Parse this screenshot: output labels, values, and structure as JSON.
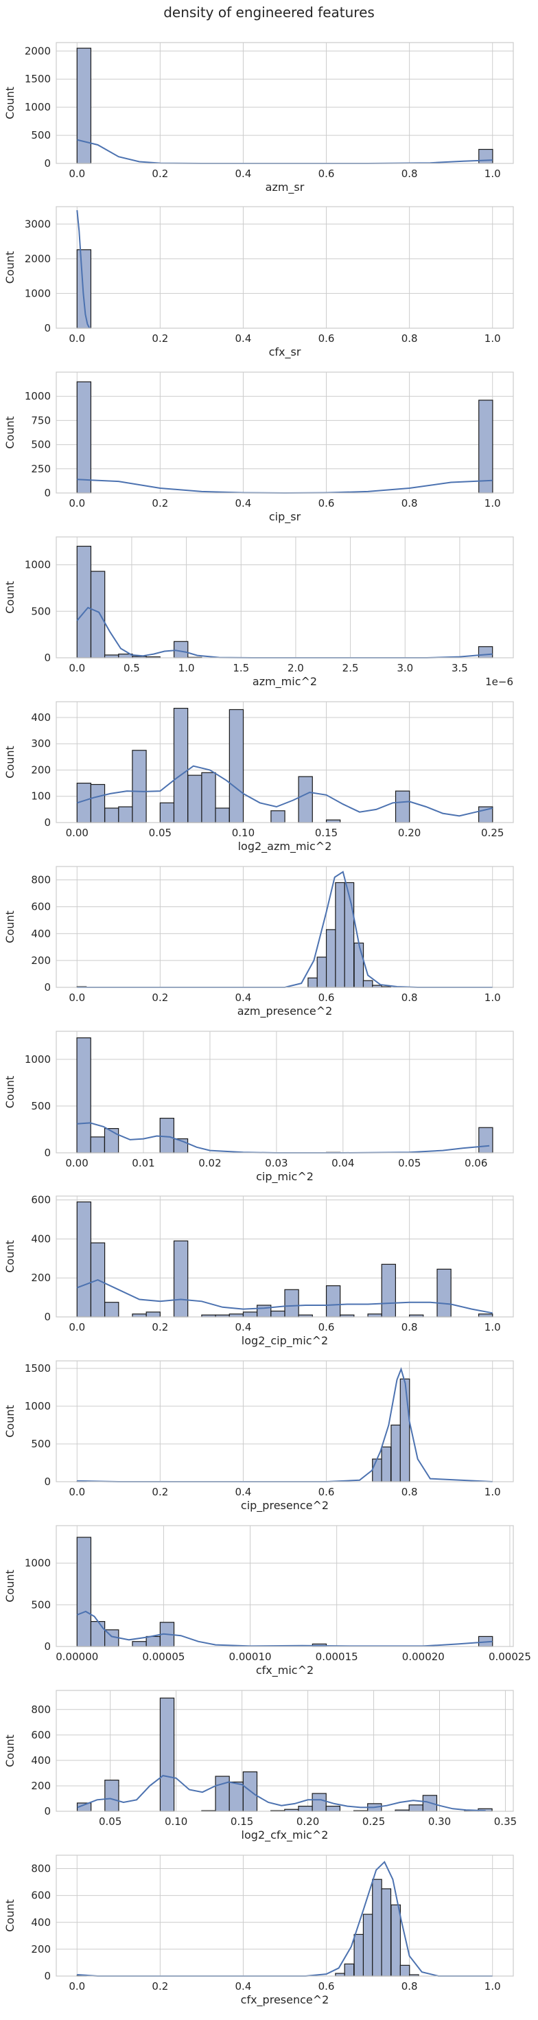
{
  "figure": {
    "title": "density of engineered features"
  },
  "colors": {
    "bar_fill": "#a3b2d2",
    "bar_edge": "#1a1a1a",
    "kde_line": "#4c72b0",
    "grid": "#cccccc",
    "frame": "#cccccc"
  },
  "chart_data": [
    {
      "type": "bar",
      "xlabel": "azm_sr",
      "ylabel": "Count",
      "xlim": [
        -0.05,
        1.05
      ],
      "ylim": [
        0,
        2150
      ],
      "xticks": [
        0.0,
        0.2,
        0.4,
        0.6,
        0.8,
        1.0
      ],
      "xtick_labels": [
        "0.0",
        "0.2",
        "0.4",
        "0.6",
        "0.8",
        "1.0"
      ],
      "yticks": [
        0,
        500,
        1000,
        1500,
        2000
      ],
      "ytick_labels": [
        "0",
        "500",
        "1000",
        "1500",
        "2000"
      ],
      "offset_label": "",
      "bin_width": 0.0333,
      "bins_x": [
        0.0,
        0.967
      ],
      "bins_count": [
        2050,
        250
      ],
      "kde_x": [
        0.0,
        0.05,
        0.1,
        0.15,
        0.2,
        0.3,
        0.5,
        0.7,
        0.85,
        0.93,
        1.0
      ],
      "kde_y": [
        420,
        330,
        120,
        30,
        5,
        0,
        0,
        0,
        10,
        40,
        60
      ]
    },
    {
      "type": "bar",
      "xlabel": "cfx_sr",
      "ylabel": "Count",
      "xlim": [
        -0.05,
        1.05
      ],
      "ylim": [
        0,
        3500
      ],
      "xticks": [
        0.0,
        0.2,
        0.4,
        0.6,
        0.8,
        1.0
      ],
      "xtick_labels": [
        "0.0",
        "0.2",
        "0.4",
        "0.6",
        "0.8",
        "1.0"
      ],
      "yticks": [
        0,
        1000,
        2000,
        3000
      ],
      "ytick_labels": [
        "0",
        "1000",
        "2000",
        "3000"
      ],
      "offset_label": "",
      "bin_width": 0.0333,
      "bins_x": [
        0.0
      ],
      "bins_count": [
        2260
      ],
      "kde_x": [
        0.0,
        0.005,
        0.01,
        0.015,
        0.02,
        0.025,
        0.03
      ],
      "kde_y": [
        3400,
        2800,
        1900,
        1000,
        400,
        120,
        0
      ]
    },
    {
      "type": "bar",
      "xlabel": "cip_sr",
      "ylabel": "Count",
      "xlim": [
        -0.05,
        1.05
      ],
      "ylim": [
        0,
        1250
      ],
      "xticks": [
        0.0,
        0.2,
        0.4,
        0.6,
        0.8,
        1.0
      ],
      "xtick_labels": [
        "0.0",
        "0.2",
        "0.4",
        "0.6",
        "0.8",
        "1.0"
      ],
      "yticks": [
        0,
        250,
        500,
        750,
        1000
      ],
      "ytick_labels": [
        "0",
        "250",
        "500",
        "750",
        "1000"
      ],
      "offset_label": "",
      "bin_width": 0.0333,
      "bins_x": [
        0.0,
        0.967
      ],
      "bins_count": [
        1150,
        960
      ],
      "kde_x": [
        0.0,
        0.1,
        0.2,
        0.3,
        0.4,
        0.5,
        0.6,
        0.7,
        0.8,
        0.9,
        1.0
      ],
      "kde_y": [
        140,
        120,
        50,
        15,
        3,
        0,
        3,
        15,
        50,
        110,
        130
      ]
    },
    {
      "type": "bar",
      "xlabel": "azm_mic^2",
      "ylabel": "Count",
      "xlim": [
        -0.19,
        3.99
      ],
      "ylim": [
        0,
        1300
      ],
      "xticks": [
        0.0,
        0.5,
        1.0,
        1.5,
        2.0,
        2.5,
        3.0,
        3.5
      ],
      "xtick_labels": [
        "0.0",
        "0.5",
        "1.0",
        "1.5",
        "2.0",
        "2.5",
        "3.0",
        "3.5"
      ],
      "yticks": [
        0,
        500,
        1000
      ],
      "ytick_labels": [
        "0",
        "500",
        "1000"
      ],
      "offset_label": "1e−6",
      "bin_width": 0.1267,
      "bins_x": [
        0.0,
        0.127,
        0.253,
        0.38,
        0.507,
        0.633,
        0.76,
        0.887,
        1.013,
        3.673
      ],
      "bins_count": [
        1200,
        930,
        30,
        40,
        15,
        10,
        0,
        175,
        5,
        120
      ],
      "kde_x": [
        0.0,
        0.1,
        0.2,
        0.3,
        0.4,
        0.5,
        0.6,
        0.7,
        0.8,
        0.9,
        1.0,
        1.1,
        1.3,
        1.6,
        3.2,
        3.5,
        3.7,
        3.8
      ],
      "kde_y": [
        400,
        540,
        490,
        280,
        100,
        30,
        20,
        40,
        70,
        80,
        60,
        25,
        3,
        0,
        0,
        10,
        30,
        40
      ]
    },
    {
      "type": "bar",
      "xlabel": "log2_azm_mic^2",
      "ylabel": "Count",
      "xlim": [
        -0.0125,
        0.2625
      ],
      "ylim": [
        0,
        460
      ],
      "xticks": [
        0.0,
        0.05,
        0.1,
        0.15,
        0.2,
        0.25
      ],
      "xtick_labels": [
        "0.00",
        "0.05",
        "0.10",
        "0.15",
        "0.20",
        "0.25"
      ],
      "yticks": [
        0,
        100,
        200,
        300,
        400
      ],
      "ytick_labels": [
        "0",
        "100",
        "200",
        "300",
        "400"
      ],
      "offset_label": "",
      "bin_width": 0.00833,
      "bins_x": [
        0.0,
        0.0083,
        0.0167,
        0.025,
        0.0333,
        0.0417,
        0.05,
        0.0583,
        0.0667,
        0.075,
        0.0833,
        0.0917,
        0.1,
        0.1083,
        0.1167,
        0.125,
        0.1333,
        0.1417,
        0.15,
        0.1583,
        0.1667,
        0.175,
        0.1833,
        0.1917,
        0.2,
        0.2083,
        0.2167,
        0.225,
        0.2333,
        0.2417
      ],
      "bins_count": [
        150,
        145,
        55,
        60,
        275,
        0,
        75,
        435,
        180,
        190,
        55,
        430,
        0,
        0,
        45,
        0,
        175,
        0,
        10,
        0,
        0,
        0,
        0,
        120,
        0,
        0,
        0,
        0,
        0,
        60
      ],
      "kde_x": [
        0.0,
        0.01,
        0.02,
        0.03,
        0.04,
        0.05,
        0.06,
        0.07,
        0.08,
        0.09,
        0.1,
        0.11,
        0.12,
        0.13,
        0.14,
        0.15,
        0.16,
        0.17,
        0.18,
        0.19,
        0.2,
        0.21,
        0.22,
        0.23,
        0.24,
        0.25
      ],
      "kde_y": [
        75,
        95,
        110,
        120,
        118,
        120,
        170,
        215,
        200,
        160,
        110,
        75,
        60,
        85,
        115,
        105,
        70,
        40,
        50,
        75,
        80,
        60,
        35,
        25,
        40,
        55
      ]
    },
    {
      "type": "bar",
      "xlabel": "azm_presence^2",
      "ylabel": "Count",
      "xlim": [
        -0.05,
        1.05
      ],
      "ylim": [
        0,
        900
      ],
      "xticks": [
        0.0,
        0.2,
        0.4,
        0.6,
        0.8,
        1.0
      ],
      "xtick_labels": [
        "0.0",
        "0.2",
        "0.4",
        "0.6",
        "0.8",
        "1.0"
      ],
      "yticks": [
        0,
        200,
        400,
        600,
        800
      ],
      "ytick_labels": [
        "0",
        "200",
        "400",
        "600",
        "800"
      ],
      "offset_label": "",
      "bin_width": 0.0222,
      "bins_x": [
        0.0,
        0.556,
        0.578,
        0.6,
        0.622,
        0.644,
        0.667,
        0.689,
        0.711,
        0.733
      ],
      "bins_count": [
        5,
        70,
        225,
        430,
        780,
        780,
        330,
        50,
        15,
        5
      ],
      "kde_x": [
        0.0,
        0.05,
        0.5,
        0.54,
        0.57,
        0.6,
        0.62,
        0.64,
        0.66,
        0.68,
        0.7,
        0.73,
        0.77,
        0.82,
        1.0
      ],
      "kde_y": [
        0,
        0,
        0,
        30,
        200,
        560,
        820,
        860,
        620,
        300,
        90,
        20,
        5,
        0,
        0
      ]
    },
    {
      "type": "bar",
      "xlabel": "cip_mic^2",
      "ylabel": "Count",
      "xlim": [
        -0.0031,
        0.0656
      ],
      "ylim": [
        0,
        1300
      ],
      "xticks": [
        0.0,
        0.01,
        0.02,
        0.03,
        0.04,
        0.05,
        0.06
      ],
      "xtick_labels": [
        "0.00",
        "0.01",
        "0.02",
        "0.03",
        "0.04",
        "0.05",
        "0.06"
      ],
      "yticks": [
        0,
        500,
        1000
      ],
      "ytick_labels": [
        "0",
        "500",
        "1000"
      ],
      "offset_label": "",
      "bin_width": 0.00208,
      "bins_x": [
        0.0,
        0.00208,
        0.00417,
        0.00625,
        0.00833,
        0.01042,
        0.0125,
        0.01458,
        0.0375,
        0.06042
      ],
      "bins_count": [
        1230,
        170,
        260,
        0,
        0,
        0,
        370,
        150,
        5,
        270
      ],
      "kde_x": [
        0.0,
        0.002,
        0.004,
        0.006,
        0.008,
        0.01,
        0.012,
        0.014,
        0.016,
        0.018,
        0.02,
        0.025,
        0.03,
        0.04,
        0.05,
        0.055,
        0.058,
        0.062
      ],
      "kde_y": [
        310,
        320,
        280,
        200,
        140,
        150,
        180,
        170,
        120,
        60,
        25,
        5,
        0,
        0,
        5,
        25,
        50,
        75
      ]
    },
    {
      "type": "bar",
      "xlabel": "log2_cip_mic^2",
      "ylabel": "Count",
      "xlim": [
        -0.05,
        1.05
      ],
      "ylim": [
        0,
        620
      ],
      "xticks": [
        0.0,
        0.2,
        0.4,
        0.6,
        0.8,
        1.0
      ],
      "xtick_labels": [
        "0.0",
        "0.2",
        "0.4",
        "0.6",
        "0.8",
        "1.0"
      ],
      "yticks": [
        0,
        200,
        400,
        600
      ],
      "ytick_labels": [
        "0",
        "200",
        "400",
        "600"
      ],
      "offset_label": "",
      "bin_width": 0.0333,
      "bins_x": [
        0.0,
        0.0333,
        0.0667,
        0.1,
        0.1333,
        0.1667,
        0.2,
        0.2333,
        0.3,
        0.3333,
        0.3667,
        0.4,
        0.4333,
        0.4667,
        0.5,
        0.5333,
        0.5667,
        0.6,
        0.6333,
        0.6667,
        0.7,
        0.7333,
        0.7667,
        0.8,
        0.8333,
        0.8667,
        0.9,
        0.9333,
        0.9667
      ],
      "bins_count": [
        590,
        380,
        75,
        0,
        15,
        25,
        0,
        390,
        10,
        10,
        15,
        25,
        60,
        30,
        140,
        10,
        0,
        160,
        10,
        0,
        15,
        270,
        0,
        10,
        0,
        245,
        0,
        0,
        15
      ],
      "kde_x": [
        0.0,
        0.05,
        0.1,
        0.15,
        0.2,
        0.25,
        0.3,
        0.35,
        0.4,
        0.45,
        0.5,
        0.55,
        0.6,
        0.65,
        0.7,
        0.75,
        0.8,
        0.85,
        0.9,
        0.95,
        1.0
      ],
      "kde_y": [
        150,
        190,
        140,
        90,
        80,
        90,
        80,
        50,
        40,
        45,
        55,
        60,
        60,
        65,
        65,
        70,
        75,
        75,
        65,
        40,
        20
      ]
    },
    {
      "type": "bar",
      "xlabel": "cip_presence^2",
      "ylabel": "Count",
      "xlim": [
        -0.05,
        1.05
      ],
      "ylim": [
        0,
        1600
      ],
      "xticks": [
        0.0,
        0.2,
        0.4,
        0.6,
        0.8,
        1.0
      ],
      "xtick_labels": [
        "0.0",
        "0.2",
        "0.4",
        "0.6",
        "0.8",
        "1.0"
      ],
      "yticks": [
        0,
        500,
        1000,
        1500
      ],
      "ytick_labels": [
        "0",
        "500",
        "1000",
        "1500"
      ],
      "offset_label": "",
      "bin_width": 0.0222,
      "bins_x": [
        0.0,
        0.711,
        0.733,
        0.756,
        0.778
      ],
      "bins_count": [
        5,
        300,
        460,
        750,
        1360
      ],
      "kde_x": [
        0.0,
        0.1,
        0.6,
        0.68,
        0.71,
        0.73,
        0.75,
        0.77,
        0.78,
        0.79,
        0.8,
        0.82,
        0.85,
        1.0
      ],
      "kde_y": [
        10,
        0,
        0,
        20,
        150,
        400,
        750,
        1350,
        1490,
        1300,
        800,
        300,
        40,
        0
      ]
    },
    {
      "type": "bar",
      "xlabel": "cfx_mic^2",
      "ylabel": "Count",
      "xlim": [
        -1.2e-05,
        0.000252
      ],
      "ylim": [
        0,
        1450
      ],
      "xticks": [
        0.0,
        5e-05,
        0.0001,
        0.00015,
        0.0002,
        0.00025
      ],
      "xtick_labels": [
        "0.00000",
        "0.00005",
        "0.00010",
        "0.00015",
        "0.00020",
        "0.00025"
      ],
      "yticks": [
        0,
        500,
        1000
      ],
      "ytick_labels": [
        "0",
        "500",
        "1000"
      ],
      "offset_label": "",
      "bin_width": 8e-06,
      "bins_x": [
        0.0,
        8e-06,
        1.6e-05,
        3.2e-05,
        4e-05,
        4.8e-05,
        0.000136,
        0.000232
      ],
      "bins_count": [
        1310,
        300,
        200,
        60,
        120,
        290,
        30,
        120
      ],
      "kde_x": [
        0.0,
        5e-06,
        1e-05,
        1.5e-05,
        2e-05,
        3e-05,
        4e-05,
        5e-05,
        6e-05,
        7e-05,
        8e-05,
        0.0001,
        0.00013,
        0.00016,
        0.0002,
        0.00022,
        0.00024
      ],
      "kde_y": [
        380,
        420,
        360,
        220,
        120,
        80,
        110,
        150,
        130,
        60,
        20,
        5,
        10,
        5,
        5,
        30,
        60
      ]
    },
    {
      "type": "bar",
      "xlabel": "log2_cfx_mic^2",
      "ylabel": "Count",
      "xlim": [
        0.009,
        0.356
      ],
      "ylim": [
        0,
        950
      ],
      "xticks": [
        0.05,
        0.1,
        0.15,
        0.2,
        0.25,
        0.3,
        0.35
      ],
      "xtick_labels": [
        "0.05",
        "0.10",
        "0.15",
        "0.20",
        "0.25",
        "0.30",
        "0.35"
      ],
      "yticks": [
        0,
        200,
        400,
        600,
        800
      ],
      "ytick_labels": [
        "0",
        "200",
        "400",
        "600",
        "800"
      ],
      "offset_label": "",
      "bin_width": 0.0105,
      "bins_x": [
        0.0249,
        0.0354,
        0.0459,
        0.0564,
        0.0669,
        0.0774,
        0.0879,
        0.0984,
        0.1089,
        0.1194,
        0.1299,
        0.1404,
        0.1509,
        0.1614,
        0.1719,
        0.1824,
        0.1929,
        0.2034,
        0.2139,
        0.2244,
        0.2349,
        0.2454,
        0.2559,
        0.2664,
        0.2769,
        0.2874,
        0.2979,
        0.3084,
        0.3189,
        0.3294
      ],
      "bins_count": [
        65,
        0,
        245,
        0,
        0,
        0,
        890,
        0,
        0,
        5,
        275,
        230,
        310,
        0,
        5,
        15,
        40,
        140,
        40,
        0,
        5,
        60,
        0,
        10,
        50,
        125,
        0,
        0,
        5,
        20
      ],
      "kde_x": [
        0.025,
        0.04,
        0.05,
        0.06,
        0.07,
        0.08,
        0.09,
        0.1,
        0.11,
        0.12,
        0.13,
        0.14,
        0.15,
        0.16,
        0.17,
        0.18,
        0.19,
        0.2,
        0.21,
        0.22,
        0.23,
        0.24,
        0.25,
        0.26,
        0.27,
        0.28,
        0.29,
        0.3,
        0.31,
        0.32,
        0.335
      ],
      "kde_y": [
        30,
        90,
        100,
        70,
        90,
        200,
        280,
        260,
        170,
        150,
        200,
        230,
        210,
        130,
        70,
        45,
        60,
        90,
        90,
        60,
        40,
        30,
        30,
        45,
        70,
        85,
        75,
        45,
        20,
        10,
        5
      ]
    },
    {
      "type": "bar",
      "xlabel": "cfx_presence^2",
      "ylabel": "Count",
      "xlim": [
        -0.05,
        1.05
      ],
      "ylim": [
        0,
        900
      ],
      "xticks": [
        0.0,
        0.2,
        0.4,
        0.6,
        0.8,
        1.0
      ],
      "xtick_labels": [
        "0.0",
        "0.2",
        "0.4",
        "0.6",
        "0.8",
        "1.0"
      ],
      "yticks": [
        0,
        200,
        400,
        600,
        800
      ],
      "ytick_labels": [
        "0",
        "200",
        "400",
        "600",
        "800"
      ],
      "offset_label": "",
      "bin_width": 0.0222,
      "bins_x": [
        0.0,
        0.622,
        0.644,
        0.667,
        0.689,
        0.711,
        0.733,
        0.756,
        0.778,
        0.8
      ],
      "bins_count": [
        5,
        20,
        90,
        310,
        460,
        720,
        650,
        530,
        80,
        10
      ],
      "kde_x": [
        0.0,
        0.05,
        0.55,
        0.6,
        0.63,
        0.66,
        0.69,
        0.72,
        0.74,
        0.76,
        0.78,
        0.8,
        0.83,
        0.87,
        1.0
      ],
      "kde_y": [
        10,
        0,
        0,
        15,
        60,
        220,
        500,
        790,
        850,
        720,
        420,
        150,
        30,
        0,
        0
      ]
    }
  ]
}
